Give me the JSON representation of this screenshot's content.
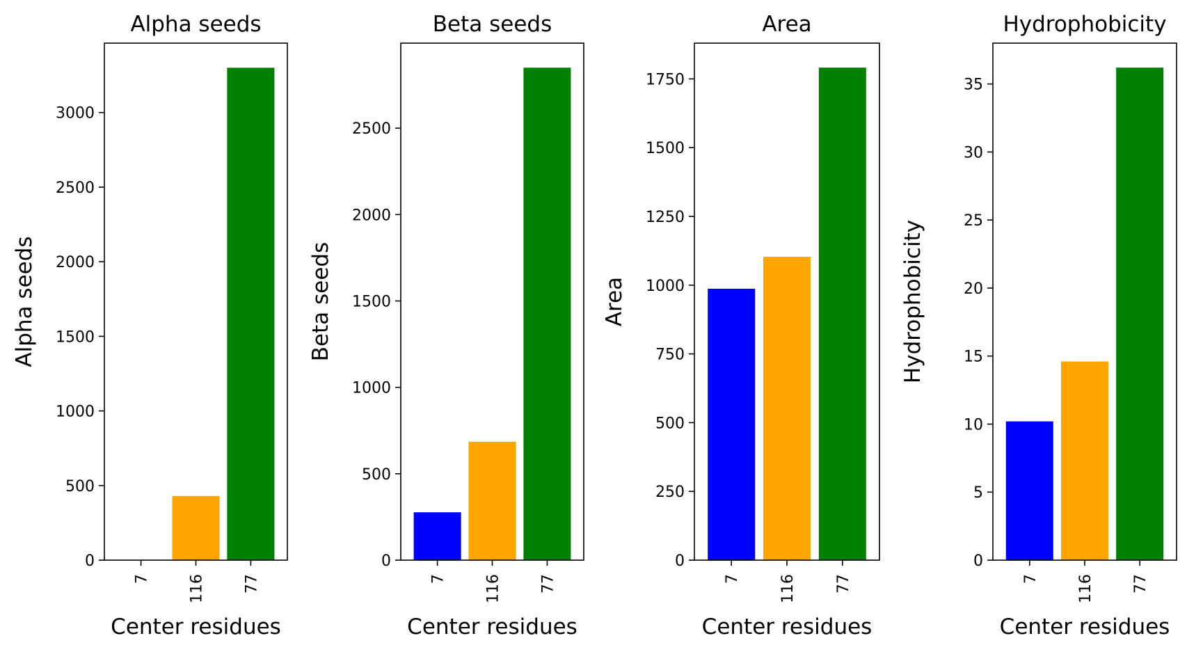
{
  "colors": {
    "bar_colors": [
      "#0000ff",
      "#ffa500",
      "#008000"
    ],
    "frame": "#000000",
    "background": "#ffffff"
  },
  "chart_data": [
    {
      "type": "bar",
      "title": "Alpha seeds",
      "xlabel": "Center residues",
      "ylabel": "Alpha seeds",
      "categories": [
        "7",
        "116",
        "77"
      ],
      "values": [
        0,
        430,
        3300
      ],
      "ylim": [
        0,
        3465
      ],
      "yticks": [
        0,
        500,
        1000,
        1500,
        2000,
        2500,
        3000
      ],
      "grid": false
    },
    {
      "type": "bar",
      "title": "Beta seeds",
      "xlabel": "Center residues",
      "ylabel": "Beta seeds",
      "categories": [
        "7",
        "116",
        "77"
      ],
      "values": [
        277,
        685,
        2850
      ],
      "ylim": [
        0,
        2992
      ],
      "yticks": [
        0,
        500,
        1000,
        1500,
        2000,
        2500
      ],
      "grid": false
    },
    {
      "type": "bar",
      "title": "Area",
      "xlabel": "Center residues",
      "ylabel": "Area",
      "categories": [
        "7",
        "116",
        "77"
      ],
      "values": [
        987,
        1103,
        1791
      ],
      "ylim": [
        0,
        1880
      ],
      "yticks": [
        0,
        250,
        500,
        750,
        1000,
        1250,
        1500,
        1750
      ],
      "grid": false
    },
    {
      "type": "bar",
      "title": "Hydrophobicity",
      "xlabel": "Center residues",
      "ylabel": "Hydrophobicity",
      "categories": [
        "7",
        "116",
        "77"
      ],
      "values": [
        10.2,
        14.6,
        36.2
      ],
      "ylim": [
        0,
        38.0
      ],
      "yticks": [
        0,
        5,
        10,
        15,
        20,
        25,
        30,
        35
      ],
      "grid": false
    }
  ]
}
